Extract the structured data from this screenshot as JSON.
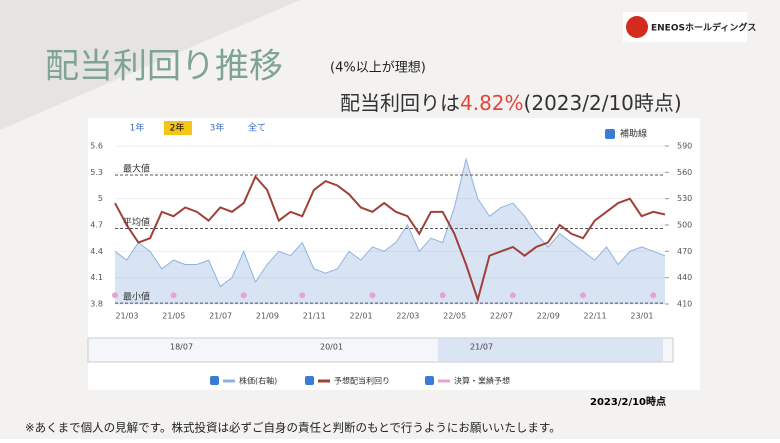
{
  "header": {
    "title": "配当利回り推移",
    "note": "(4%以上が理想)",
    "logo": "ENEOSホールディングス",
    "headline_prefix": "配当利回りは",
    "headline_value": "4.82%",
    "headline_suffix": "(2023/2/10時点)"
  },
  "tabs": [
    "1年",
    "2年",
    "3年",
    "全て"
  ],
  "aux_toggle": "補助線",
  "navigator_labels": [
    "18/07",
    "20/01",
    "21/07"
  ],
  "chart_data": {
    "type": "line",
    "categories": [
      "21/03",
      null,
      null,
      null,
      "21/05",
      null,
      null,
      null,
      "21/07",
      null,
      null,
      null,
      "21/09",
      null,
      null,
      null,
      "21/11",
      null,
      null,
      null,
      "22/01",
      null,
      null,
      null,
      "22/03",
      null,
      null,
      null,
      "22/05",
      null,
      null,
      null,
      "22/07",
      null,
      null,
      null,
      "22/09",
      null,
      null,
      null,
      "22/11",
      null,
      null,
      null,
      "23/01",
      null,
      null,
      null
    ],
    "series": [
      {
        "name": "株価(右軸)",
        "color": "#8fb3e0",
        "axis": "y2",
        "values": [
          470,
          460,
          480,
          470,
          450,
          460,
          455,
          455,
          460,
          430,
          440,
          470,
          435,
          455,
          470,
          465,
          480,
          450,
          445,
          450,
          470,
          460,
          475,
          470,
          480,
          500,
          470,
          485,
          480,
          520,
          575,
          530,
          510,
          520,
          525,
          510,
          490,
          475,
          490,
          480,
          470,
          460,
          475,
          455,
          470,
          475,
          470,
          465
        ]
      },
      {
        "name": "予想配当利回り",
        "color": "#a0403a",
        "values": [
          4.95,
          4.7,
          4.5,
          4.55,
          4.85,
          4.8,
          4.9,
          4.85,
          4.75,
          4.9,
          4.85,
          4.95,
          5.25,
          5.1,
          4.75,
          4.85,
          4.8,
          5.1,
          5.2,
          5.15,
          5.05,
          4.9,
          4.85,
          4.95,
          4.85,
          4.8,
          4.6,
          4.85,
          4.85,
          4.6,
          4.25,
          3.85,
          4.35,
          4.4,
          4.45,
          4.35,
          4.45,
          4.5,
          4.7,
          4.6,
          4.55,
          4.75,
          4.85,
          4.95,
          5.0,
          4.8,
          4.85,
          4.82
        ]
      },
      {
        "name": "決算・業績予想",
        "color": "#e8a3d3",
        "values": [
          3.9,
          null,
          null,
          null,
          null,
          3.9,
          null,
          null,
          null,
          null,
          null,
          3.9,
          null,
          null,
          null,
          null,
          3.9,
          null,
          null,
          null,
          null,
          null,
          3.9,
          null,
          null,
          null,
          null,
          null,
          3.9,
          null,
          null,
          null,
          null,
          null,
          3.9,
          null,
          null,
          null,
          null,
          null,
          3.9,
          null,
          null,
          null,
          null,
          null,
          3.9,
          null
        ]
      }
    ],
    "reference_lines": [
      {
        "label": "最大値",
        "value": 5.27
      },
      {
        "label": "平均値",
        "value": 4.66
      },
      {
        "label": "最小値",
        "value": 3.81
      }
    ],
    "ylim": [
      3.8,
      5.6
    ],
    "yticks": [
      3.8,
      4.1,
      4.4,
      4.7,
      5,
      5.3,
      5.6
    ],
    "y2lim": [
      410,
      590
    ],
    "y2ticks": [
      410,
      440,
      470,
      500,
      530,
      560,
      590
    ]
  },
  "footer": {
    "as_of": "2023/2/10時点",
    "disclaimer": "※あくまで個人の見解です。株式投資は必ずご自身の責任と判断のもとで行うようにお願いいたします。"
  }
}
